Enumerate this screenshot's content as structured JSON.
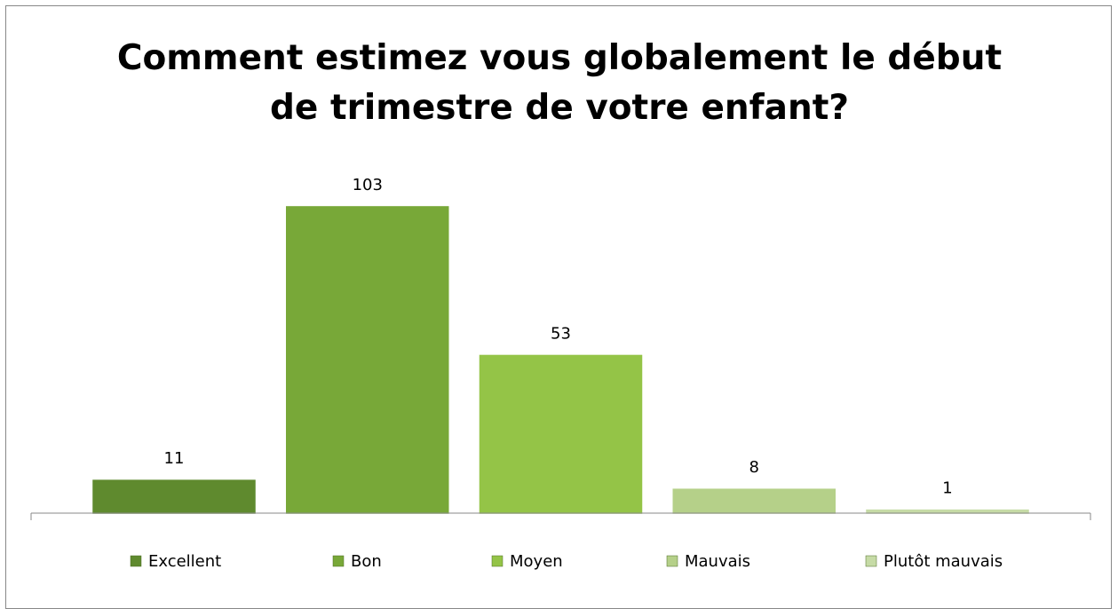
{
  "chart_data": {
    "type": "bar",
    "title": "Comment estimez vous globalement le début de trimestre de votre enfant?",
    "ylim": [
      0,
      120
    ],
    "series": [
      {
        "name": "Excellent",
        "color": "#5f8a2e",
        "values": [
          11
        ]
      },
      {
        "name": "Bon",
        "color": "#78a838",
        "values": [
          103
        ]
      },
      {
        "name": "Moyen",
        "color": "#94c447",
        "values": [
          53
        ]
      },
      {
        "name": "Mauvais",
        "color": "#b5d089",
        "values": [
          8
        ]
      },
      {
        "name": "Plutôt mauvais",
        "color": "#c6dba6",
        "values": [
          1
        ]
      }
    ],
    "legend": "bottom"
  }
}
